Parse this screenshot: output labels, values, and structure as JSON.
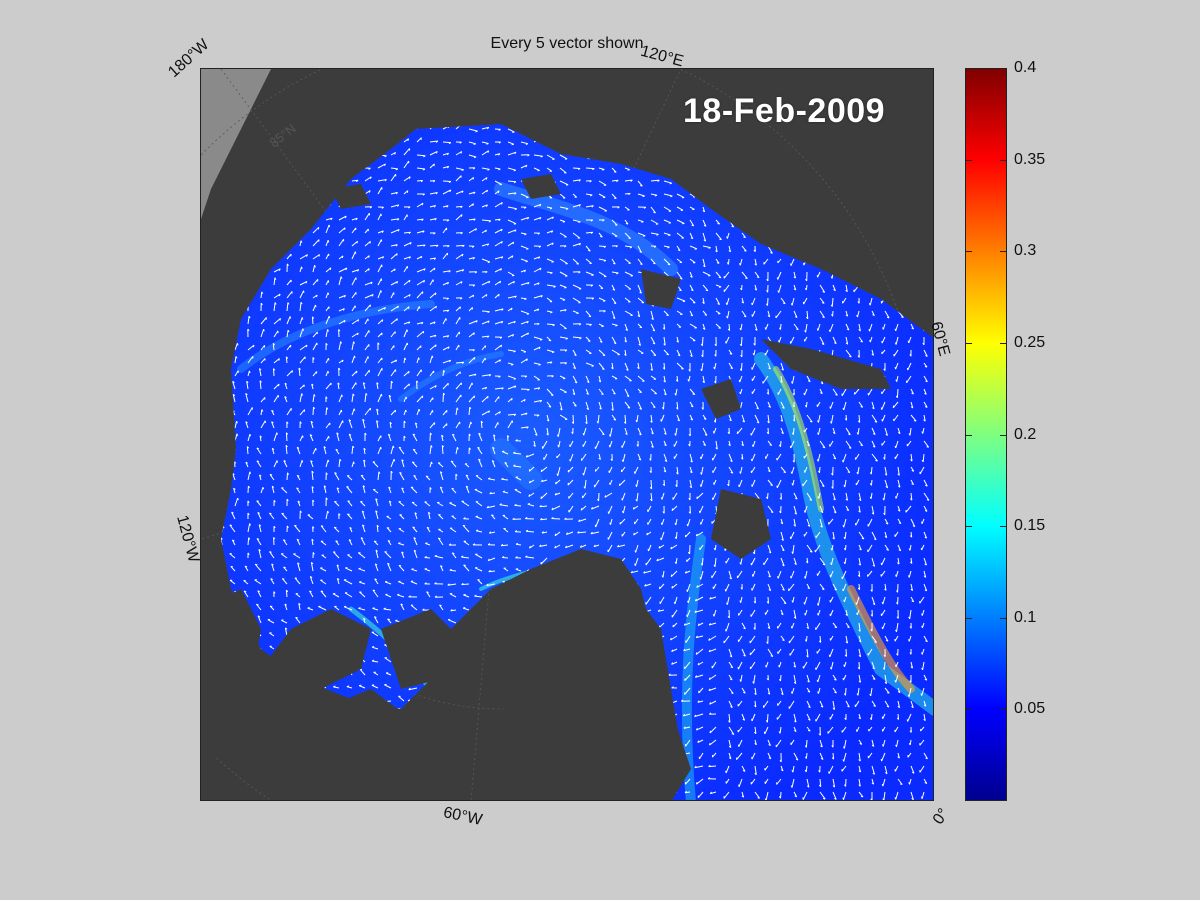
{
  "title": "Every 5 vector shown",
  "date_label": "18-Feb-2009",
  "map_labels": {
    "lon_180w": "180°W",
    "lon_120e": "120°E",
    "lon_60e": "60°E",
    "lon_120w": "120°W",
    "lon_60w": "60°W",
    "lon_0": "0°",
    "lat_85n": "85°N"
  },
  "colorbar": {
    "ticks": [
      "0.4",
      "0.35",
      "0.3",
      "0.25",
      "0.2",
      "0.15",
      "0.1",
      "0.05"
    ],
    "tick_values": [
      0.4,
      0.35,
      0.3,
      0.25,
      0.2,
      0.15,
      0.1,
      0.05
    ],
    "min": 0,
    "max": 0.4,
    "colormap": "jet"
  },
  "colors": {
    "background": "#cccccc",
    "land": "#3c3c3c",
    "land_light": "#8a8a8a",
    "ice_base": "#1030f0",
    "vector": "#ffffff"
  }
}
